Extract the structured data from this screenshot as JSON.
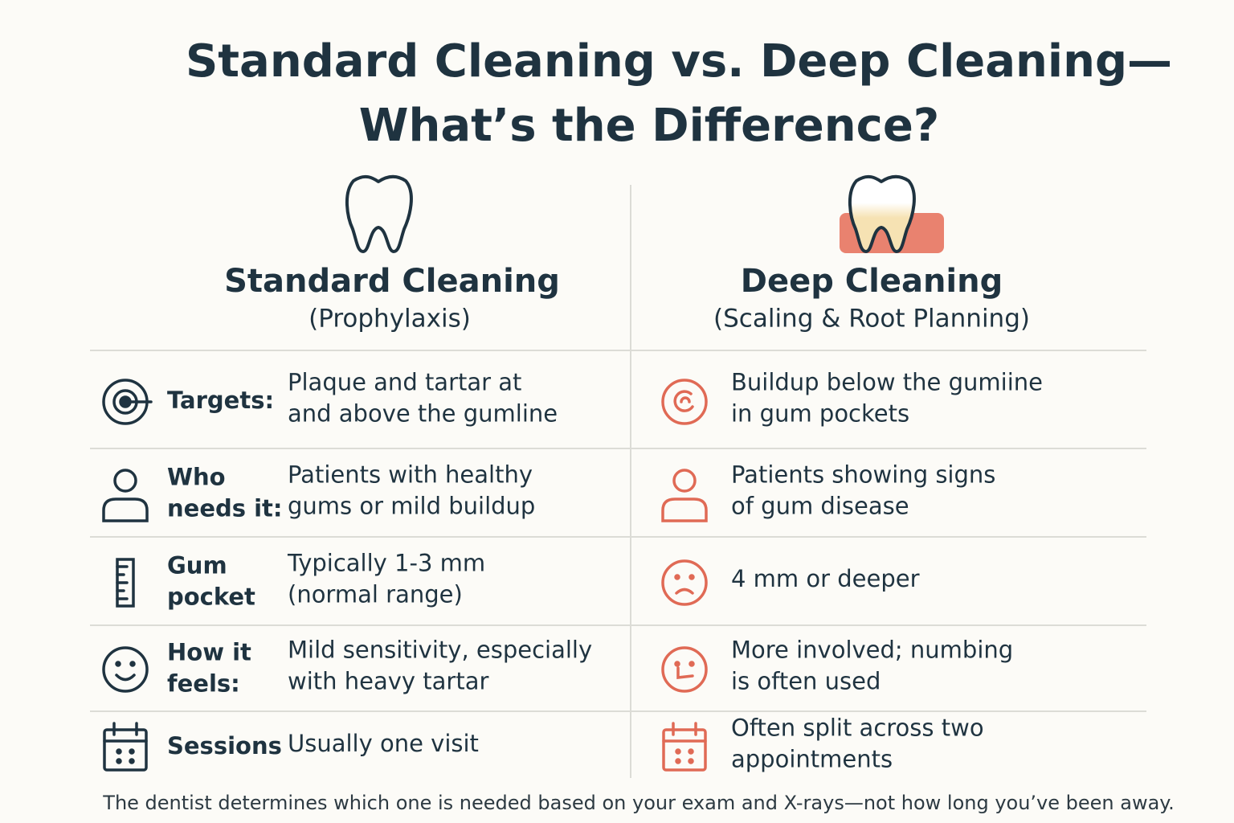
{
  "title": {
    "lines": [
      "Standard Cleaning vs. Deep Cleaning—",
      "What’s the Difference?"
    ]
  },
  "columns": [
    {
      "heading": "Standard Cleaning",
      "subheading": "(Prophylaxis)"
    },
    {
      "heading": "Deep Cleaning",
      "subheading": "(Scaling & Root Planning)"
    }
  ],
  "rows": [
    {
      "label": [
        "Targets:"
      ],
      "standard": [
        "Plaque and tartar at",
        "and above the gumline"
      ],
      "deep": [
        "Buildup below the gumiine",
        "in gum pockets"
      ]
    },
    {
      "label": [
        "Who",
        "needs it:"
      ],
      "standard": [
        "Patients with healthy",
        "gums or mild buildup"
      ],
      "deep": [
        "Patients showing signs",
        "of gum disease"
      ]
    },
    {
      "label": [
        "Gum",
        "pocket"
      ],
      "standard": [
        "Typically 1-3 mm",
        "(normal range)"
      ],
      "deep": [
        "4 mm or deeper"
      ]
    },
    {
      "label": [
        "How it",
        "feels:"
      ],
      "standard": [
        "Mild sensitivity, especially",
        "with heavy tartar"
      ],
      "deep": [
        "More involved; numbing",
        "is often used"
      ]
    },
    {
      "label": [
        "Sessions"
      ],
      "standard": [
        "Usually one visit"
      ],
      "deep": [
        "Often split across two",
        "appointments"
      ]
    }
  ],
  "footer": "The dentist determines which one is needed based on your exam and X-rays—not how long you’ve been away."
}
